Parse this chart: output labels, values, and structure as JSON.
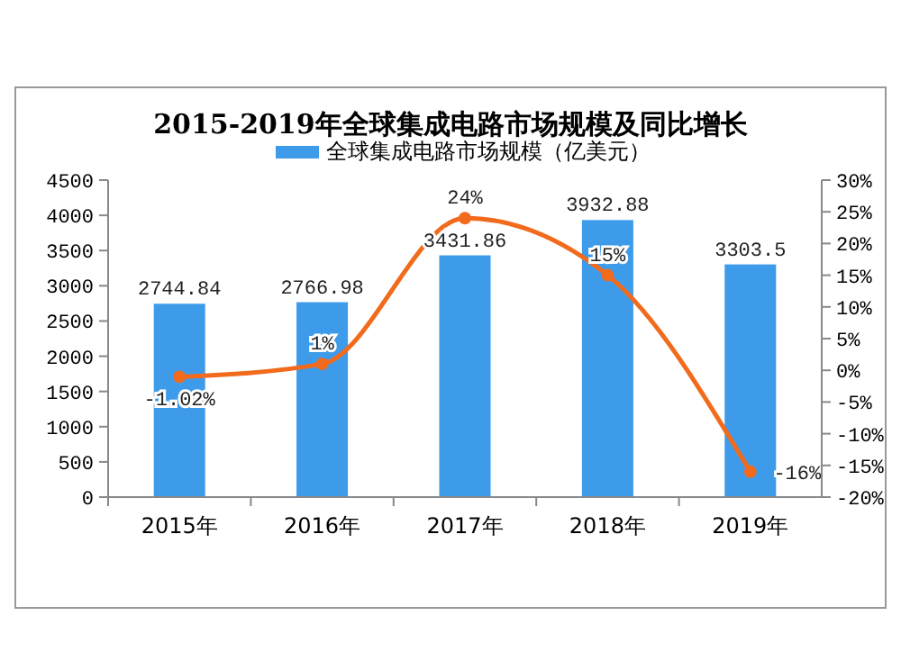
{
  "chart_data": {
    "type": "bar",
    "title": "2015-2019年全球集成电路市场规模及同比增长",
    "categories": [
      "2015年",
      "2016年",
      "2017年",
      "2018年",
      "2019年"
    ],
    "series": [
      {
        "name": "全球集成电路市场规模（亿美元）",
        "color": "#3d9be9",
        "values": [
          2744.84,
          2766.98,
          3431.86,
          3932.88,
          3303.5
        ],
        "value_labels": [
          "2744.84",
          "2766.98",
          "3431.86",
          "3932.88",
          "3303.5"
        ]
      },
      {
        "type": "line",
        "axis": "y2",
        "color": "#f26b1d",
        "values": [
          -1.02,
          1,
          24,
          15,
          -16
        ],
        "value_labels": [
          "-1.02%",
          "1%",
          "24%",
          "15%",
          "-16%"
        ]
      }
    ],
    "ylim": [
      0,
      4500
    ],
    "yticks": [
      0,
      500,
      1000,
      1500,
      2000,
      2500,
      3000,
      3500,
      4000,
      4500
    ],
    "y2lim": [
      -20,
      30
    ],
    "y2ticks": [
      {
        "value": -20,
        "label": "-20%"
      },
      {
        "value": -15,
        "label": "-15%"
      },
      {
        "value": -10,
        "label": "-10%"
      },
      {
        "value": -5,
        "label": "-5%"
      },
      {
        "value": 0,
        "label": "0%"
      },
      {
        "value": 5,
        "label": "5%"
      },
      {
        "value": 10,
        "label": "10%"
      },
      {
        "value": 15,
        "label": "15%"
      },
      {
        "value": 20,
        "label": "20%"
      },
      {
        "value": 25,
        "label": "25%"
      },
      {
        "value": 30,
        "label": "30%"
      }
    ],
    "legend": "top",
    "grid": false,
    "marker": "circle"
  }
}
